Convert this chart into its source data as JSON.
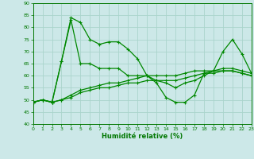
{
  "xlabel": "Humidité relative (%)",
  "background_color": "#cce8e8",
  "grid_color": "#aad4cc",
  "line_color": "#008800",
  "text_color": "#007700",
  "xlim": [
    0,
    23
  ],
  "ylim": [
    40,
    90
  ],
  "xticks": [
    0,
    1,
    2,
    3,
    4,
    5,
    6,
    7,
    8,
    9,
    10,
    11,
    12,
    13,
    14,
    15,
    16,
    17,
    18,
    19,
    20,
    21,
    22,
    23
  ],
  "yticks": [
    40,
    45,
    50,
    55,
    60,
    65,
    70,
    75,
    80,
    85,
    90
  ],
  "lines": [
    [
      49,
      50,
      49,
      66,
      84,
      82,
      75,
      73,
      74,
      74,
      71,
      67,
      60,
      57,
      51,
      49,
      49,
      52,
      61,
      62,
      70,
      75,
      69,
      61
    ],
    [
      49,
      50,
      49,
      66,
      83,
      65,
      65,
      63,
      63,
      63,
      60,
      60,
      60,
      58,
      57,
      55,
      57,
      58,
      60,
      62,
      63,
      63,
      62,
      61
    ],
    [
      49,
      50,
      49,
      50,
      52,
      54,
      55,
      56,
      57,
      57,
      58,
      59,
      60,
      60,
      60,
      60,
      61,
      62,
      62,
      62,
      62,
      62,
      61,
      60
    ],
    [
      49,
      50,
      49,
      50,
      51,
      53,
      54,
      55,
      55,
      56,
      57,
      57,
      58,
      58,
      58,
      58,
      59,
      60,
      61,
      61,
      62,
      62,
      61,
      60
    ]
  ]
}
